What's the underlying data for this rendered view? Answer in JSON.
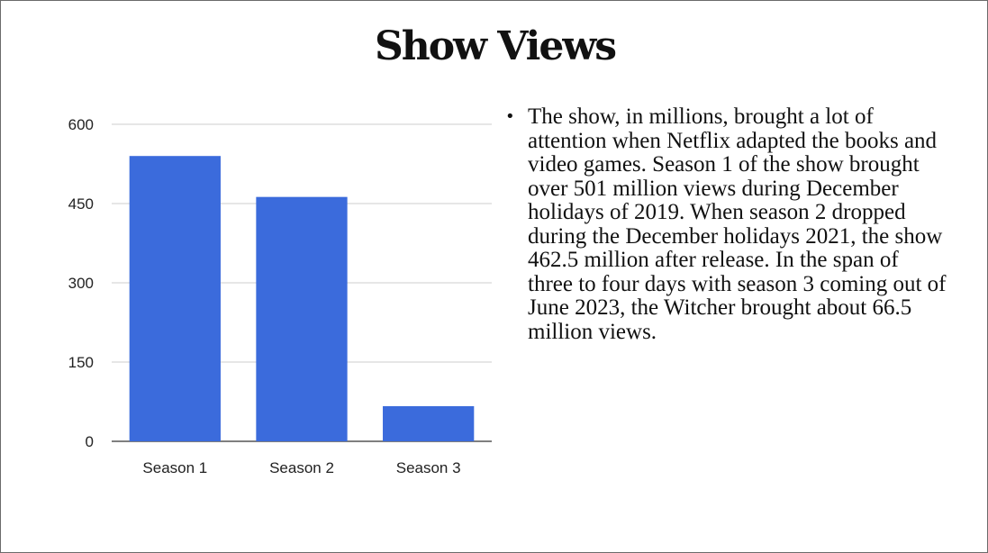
{
  "slide": {
    "title": "Show Views",
    "bullets": [
      {
        "text": "The show, in millions, brought a lot of attention when Netflix adapted the books and video games. Season 1 of the show brought over 501 million views during December holidays of 2019. When season 2 dropped during the December holidays 2021, the show 462.5 million after release. In the span of three to four days with season 3 coming out of June 2023, the Witcher brought about 66.5 million views."
      }
    ]
  },
  "colors": {
    "bar": "#3b6bdc",
    "gridline": "#cccccc",
    "axis": "#333333",
    "text": "#111111"
  },
  "chart_data": {
    "type": "bar",
    "title": "",
    "xlabel": "",
    "ylabel": "",
    "categories": [
      "Season 1",
      "Season 2",
      "Season 3"
    ],
    "values": [
      540,
      462.5,
      66.5
    ],
    "ylim": [
      0,
      600
    ],
    "yticks": [
      0,
      150,
      300,
      450,
      600
    ],
    "grid": true,
    "legend": "none"
  }
}
